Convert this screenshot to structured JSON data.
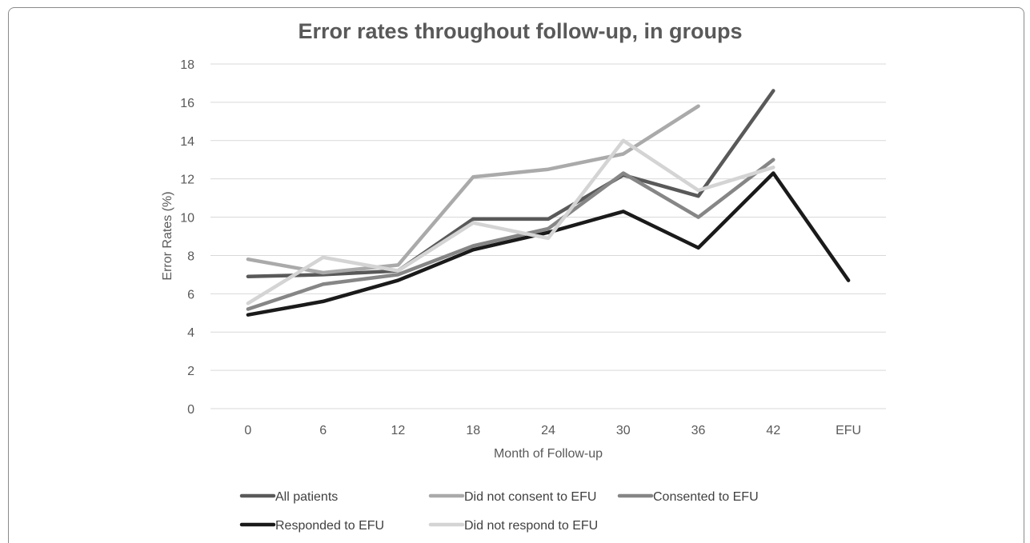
{
  "chart_data": {
    "type": "line",
    "title": "Error rates throughout follow-up, in groups",
    "xlabel": "Month of Follow-up",
    "ylabel": "Error Rates (%)",
    "ylim": [
      0,
      18
    ],
    "yticks": [
      "0",
      "2",
      "4",
      "6",
      "8",
      "10",
      "12",
      "14",
      "16",
      "18"
    ],
    "categories": [
      "0",
      "6",
      "12",
      "18",
      "24",
      "30",
      "36",
      "42",
      "EFU"
    ],
    "grid": true,
    "legend_position": "bottom",
    "series": [
      {
        "name": "All patients",
        "color": "#595959",
        "values": [
          6.9,
          7.0,
          7.2,
          9.9,
          9.9,
          12.2,
          11.1,
          16.6,
          null
        ]
      },
      {
        "name": "Did not consent to EFU",
        "color": "#aaaaaa",
        "values": [
          7.8,
          7.1,
          7.5,
          12.1,
          12.5,
          13.3,
          15.8,
          null,
          null
        ]
      },
      {
        "name": "Consented to EFU",
        "color": "#868686",
        "values": [
          5.2,
          6.5,
          7.0,
          8.5,
          9.4,
          12.3,
          10.0,
          13.0,
          null
        ]
      },
      {
        "name": "Responded to EFU",
        "color": "#1a1a1a",
        "values": [
          4.9,
          5.6,
          6.7,
          8.3,
          9.2,
          10.3,
          8.4,
          12.3,
          6.7
        ]
      },
      {
        "name": "Did not respond to EFU",
        "color": "#d4d4d4",
        "values": [
          5.5,
          7.9,
          7.2,
          9.7,
          8.9,
          14.0,
          11.4,
          12.6,
          null
        ]
      }
    ]
  }
}
